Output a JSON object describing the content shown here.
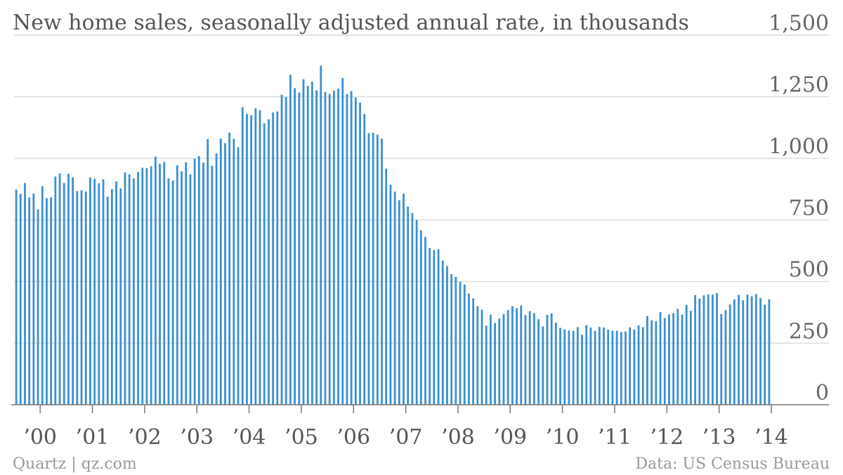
{
  "colors": {
    "bar": "#3a8fd1",
    "grid": "#dcdcdc",
    "axis": "#777777"
  },
  "footer": {
    "source_left": "Quartz | qz.com",
    "source_right": "Data: US Census Bureau"
  },
  "chart_data": {
    "type": "bar",
    "title": "New home sales, seasonally adjusted annual rate, in thousands",
    "xlabel": "",
    "ylabel": "",
    "ylim": [
      0,
      1500
    ],
    "y_ticks": [
      0,
      250,
      500,
      750,
      1000,
      1250,
      1500
    ],
    "y_tick_labels": [
      "0",
      "250",
      "500",
      "750",
      "1,000",
      "1,250",
      "1,500"
    ],
    "y_axis_side": "right",
    "grid": true,
    "legend": "none",
    "x_tick_labels": [
      "’00",
      "’01",
      "’02",
      "’03",
      "’04",
      "’05",
      "’06",
      "’07",
      "’08",
      "’09",
      "’10",
      "’11",
      "’12",
      "’13",
      "’14"
    ],
    "x_start": "2000-01",
    "x_end": "2014-06",
    "series": [
      {
        "name": "",
        "frequency": "monthly",
        "values": [
          873,
          856,
          900,
          841,
          857,
          793,
          887,
          838,
          842,
          926,
          939,
          900,
          938,
          923,
          867,
          870,
          865,
          922,
          917,
          899,
          915,
          844,
          875,
          906,
          878,
          943,
          935,
          919,
          945,
          962,
          960,
          968,
          1007,
          978,
          985,
          919,
          910,
          972,
          947,
          984,
          935,
          998,
          1009,
          983,
          1078,
          970,
          1020,
          1080,
          1062,
          1104,
          1079,
          1045,
          1208,
          1180,
          1175,
          1203,
          1195,
          1142,
          1158,
          1186,
          1190,
          1258,
          1249,
          1339,
          1285,
          1267,
          1321,
          1294,
          1311,
          1276,
          1376,
          1269,
          1261,
          1275,
          1283,
          1326,
          1261,
          1273,
          1247,
          1226,
          1180,
          1102,
          1104,
          1096,
          1080,
          958,
          893,
          865,
          830,
          857,
          804,
          778,
          750,
          708,
          681,
          636,
          628,
          631,
          585,
          563,
          530,
          519,
          499,
          488,
          451,
          432,
          400,
          386,
          321,
          365,
          332,
          350,
          368,
          384,
          400,
          392,
          403,
          364,
          380,
          372,
          347,
          318,
          365,
          371,
          333,
          312,
          306,
          301,
          300,
          315,
          284,
          323,
          313,
          300,
          316,
          313,
          305,
          300,
          300,
          295,
          297,
          314,
          305,
          322,
          315,
          360,
          343,
          339,
          376,
          352,
          366,
          372,
          389,
          366,
          405,
          381,
          445,
          431,
          444,
          448,
          447,
          453,
          368,
          384,
          407,
          428,
          446,
          424,
          447,
          440,
          449,
          433,
          406,
          428
        ]
      }
    ]
  }
}
